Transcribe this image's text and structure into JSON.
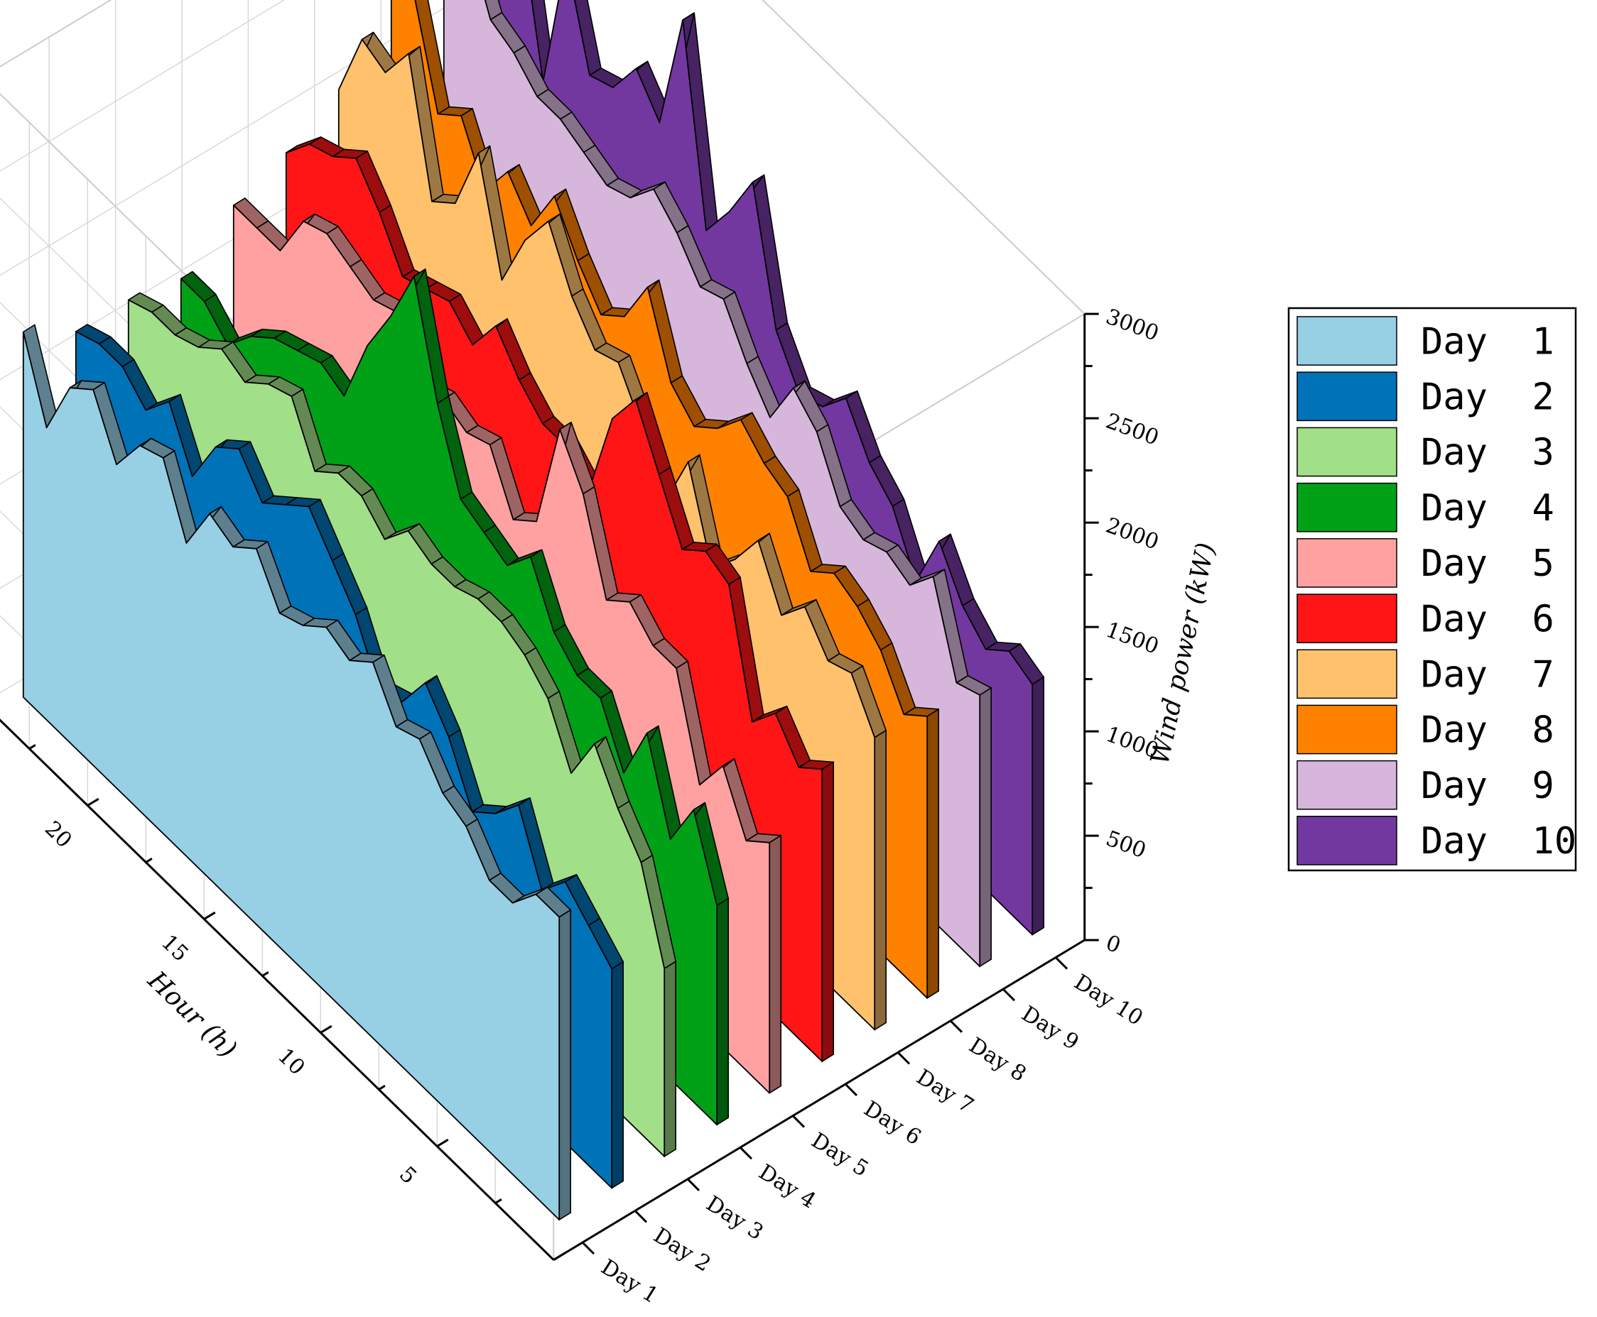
{
  "chart_data": {
    "type": "area",
    "subtype": "3d-wall",
    "xlabel": "Hour (h)",
    "ylabel": "",
    "zlabel": "Wind power (kW)",
    "hour_ticks": [
      "5",
      "10",
      "15",
      "20"
    ],
    "zlim": [
      0,
      3000
    ],
    "z_ticks": [
      "0",
      "500",
      "1000",
      "1500",
      "2000",
      "2500",
      "3000"
    ],
    "grid": true,
    "legend": "right",
    "hours": [
      1,
      2,
      3,
      4,
      5,
      6,
      7,
      8,
      9,
      10,
      11,
      12,
      13,
      14,
      15,
      16,
      17,
      18,
      19,
      20,
      21,
      22,
      23,
      24
    ],
    "series": [
      {
        "name": "Day  1",
        "color": "#97cfe5",
        "values": [
          1450,
          1450,
          1300,
          1300,
          1450,
          1500,
          1650,
          1600,
          1800,
          1700,
          1750,
          1650,
          1600,
          1800,
          1700,
          1750,
          1500,
          1800,
          1750,
          1550,
          1800,
          1700,
          1400,
          1750
        ]
      },
      {
        "name": "Day  2",
        "color": "#0072b8",
        "values": [
          1050,
          1150,
          1250,
          1100,
          1400,
          1250,
          1150,
          1400,
          1550,
          1350,
          1300,
          1550,
          1700,
          1850,
          1750,
          1650,
          1800,
          1700,
          1450,
          1700,
          1550,
          1650,
          1650,
          1600
        ]
      },
      {
        "name": "Day  3",
        "color": "#a1df88",
        "values": [
          900,
          1300,
          1450,
          1650,
          1400,
          1650,
          1750,
          1800,
          1800,
          1750,
          1750,
          1800,
          1650,
          1750,
          1750,
          1650,
          1900,
          1850,
          1750,
          1800,
          1700,
          1650,
          1650,
          1600
        ]
      },
      {
        "name": "Day  4",
        "color": "#00a116",
        "values": [
          1050,
          1400,
          1150,
          1550,
          1250,
          1500,
          1500,
          1600,
          1850,
          1700,
          1750,
          1800,
          2150,
          2650,
          2350,
          2100,
          1750,
          1800,
          1750,
          1700,
          1600,
          1450,
          1550,
          1550
        ]
      },
      {
        "name": "Day  5",
        "color": "#ffa1a1",
        "values": [
          1200,
          1100,
          1350,
          1150,
          1600,
          1600,
          1700,
          1600,
          2000,
          2200,
          1650,
          1550,
          1800,
          1750,
          1800,
          1750,
          2000,
          1950,
          2000,
          2050,
          2000,
          1750,
          1750,
          1750
        ]
      },
      {
        "name": "Day  6",
        "color": "#ff1515",
        "values": [
          1400,
          1300,
          1450,
          1300,
          1850,
          1900,
          1800,
          2050,
          2300,
          2100,
          1650,
          1750,
          1750,
          1850,
          2000,
          1800,
          1900,
          1850,
          1800,
          2000,
          2150,
          2050,
          2000,
          1850
        ]
      },
      {
        "name": "Day  7",
        "color": "#ffc16c",
        "values": [
          1400,
          1600,
          1550,
          1700,
          1550,
          1800,
          1600,
          1450,
          1850,
          1550,
          1800,
          2000,
          1950,
          2100,
          2350,
          2150,
          1850,
          2350,
          2000,
          1900,
          2500,
          2300,
          2350,
          2000
        ]
      },
      {
        "name": "Day  8",
        "color": "#ff8100",
        "values": [
          1350,
          1250,
          1450,
          1550,
          1600,
          1500,
          1750,
          1800,
          1900,
          1750,
          1650,
          1750,
          2100,
          1850,
          1750,
          1900,
          2100,
          1850,
          2000,
          1800,
          2050,
          1950,
          2400,
          2300
        ]
      },
      {
        "name": "Day  9",
        "color": "#d7b6dc",
        "values": [
          1300,
          1250,
          1650,
          1500,
          1550,
          1500,
          1550,
          1800,
          1900,
          1650,
          1800,
          2000,
          1950,
          2100,
          2200,
          2050,
          2000,
          2050,
          2100,
          2100,
          2200,
          2250,
          2550,
          2500
        ]
      },
      {
        "name": "Day  10",
        "color": "#7238a0",
        "values": [
          1200,
          1250,
          1150,
          1250,
          1450,
          1150,
          1400,
          1500,
          1700,
          1550,
          1500,
          1700,
          2300,
          2050,
          1850,
          2750,
          2150,
          2300,
          2100,
          2050,
          2500,
          1800,
          2500,
          1950
        ]
      }
    ]
  }
}
